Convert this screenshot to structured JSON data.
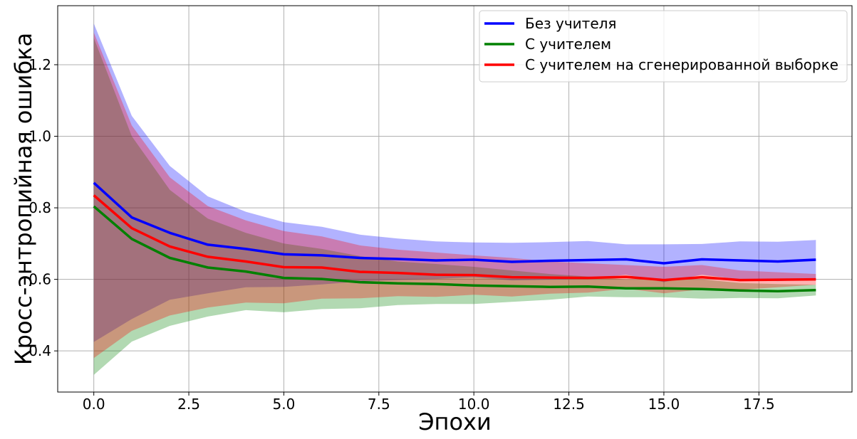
{
  "chart_data": {
    "type": "line",
    "title": "",
    "xlabel": "Эпохи",
    "ylabel": "Кросс-энтропийная ошибка",
    "xlim": [
      -0.95,
      19.95
    ],
    "ylim": [
      0.285,
      1.365
    ],
    "xticks": [
      0.0,
      2.5,
      5.0,
      7.5,
      10.0,
      12.5,
      15.0,
      17.5
    ],
    "xtick_labels": [
      "0.0",
      "2.5",
      "5.0",
      "7.5",
      "10.0",
      "12.5",
      "15.0",
      "17.5"
    ],
    "yticks": [
      0.4,
      0.6,
      0.8,
      1.0,
      1.2
    ],
    "ytick_labels": [
      "0.4",
      "0.6",
      "0.8",
      "1.0",
      "1.2"
    ],
    "grid": true,
    "legend_position": "top-right",
    "x": [
      0,
      1,
      2,
      3,
      4,
      5,
      6,
      7,
      8,
      9,
      10,
      11,
      12,
      13,
      14,
      15,
      16,
      17,
      18,
      19
    ],
    "series": [
      {
        "name": "Без учителя",
        "color": "#0000ff",
        "values": [
          0.87,
          0.773,
          0.73,
          0.697,
          0.685,
          0.67,
          0.667,
          0.66,
          0.657,
          0.653,
          0.655,
          0.649,
          0.652,
          0.654,
          0.656,
          0.645,
          0.656,
          0.653,
          0.65,
          0.655
        ],
        "upper": [
          1.315,
          1.057,
          0.917,
          0.832,
          0.789,
          0.76,
          0.747,
          0.725,
          0.714,
          0.706,
          0.703,
          0.702,
          0.704,
          0.707,
          0.698,
          0.698,
          0.699,
          0.706,
          0.705,
          0.71
        ],
        "lower": [
          0.425,
          0.489,
          0.543,
          0.561,
          0.578,
          0.579,
          0.586,
          0.594,
          0.598,
          0.601,
          0.606,
          0.597,
          0.599,
          0.601,
          0.613,
          0.592,
          0.613,
          0.6,
          0.595,
          0.6
        ]
      },
      {
        "name": "С учителем",
        "color": "#008000",
        "values": [
          0.804,
          0.713,
          0.66,
          0.633,
          0.622,
          0.604,
          0.601,
          0.592,
          0.589,
          0.587,
          0.583,
          0.581,
          0.579,
          0.58,
          0.575,
          0.575,
          0.573,
          0.569,
          0.567,
          0.57
        ],
        "upper": [
          1.275,
          1.0,
          0.85,
          0.77,
          0.73,
          0.7,
          0.685,
          0.665,
          0.65,
          0.643,
          0.635,
          0.625,
          0.615,
          0.608,
          0.6,
          0.6,
          0.6,
          0.59,
          0.587,
          0.585
        ],
        "lower": [
          0.333,
          0.426,
          0.47,
          0.496,
          0.514,
          0.508,
          0.517,
          0.519,
          0.528,
          0.531,
          0.531,
          0.537,
          0.543,
          0.552,
          0.55,
          0.55,
          0.546,
          0.548,
          0.547,
          0.555
        ]
      },
      {
        "name": "С учителем на сгенерированной выборке",
        "color": "#ff0000",
        "values": [
          0.835,
          0.743,
          0.692,
          0.663,
          0.65,
          0.634,
          0.633,
          0.621,
          0.618,
          0.613,
          0.612,
          0.606,
          0.605,
          0.604,
          0.607,
          0.598,
          0.606,
          0.598,
          0.599,
          0.6
        ],
        "upper": [
          1.29,
          1.03,
          0.885,
          0.805,
          0.765,
          0.735,
          0.72,
          0.695,
          0.683,
          0.675,
          0.667,
          0.66,
          0.65,
          0.645,
          0.64,
          0.635,
          0.64,
          0.625,
          0.62,
          0.615
        ],
        "lower": [
          0.38,
          0.456,
          0.499,
          0.521,
          0.535,
          0.533,
          0.546,
          0.547,
          0.553,
          0.551,
          0.557,
          0.552,
          0.56,
          0.563,
          0.574,
          0.561,
          0.572,
          0.571,
          0.578,
          0.585
        ]
      }
    ]
  }
}
